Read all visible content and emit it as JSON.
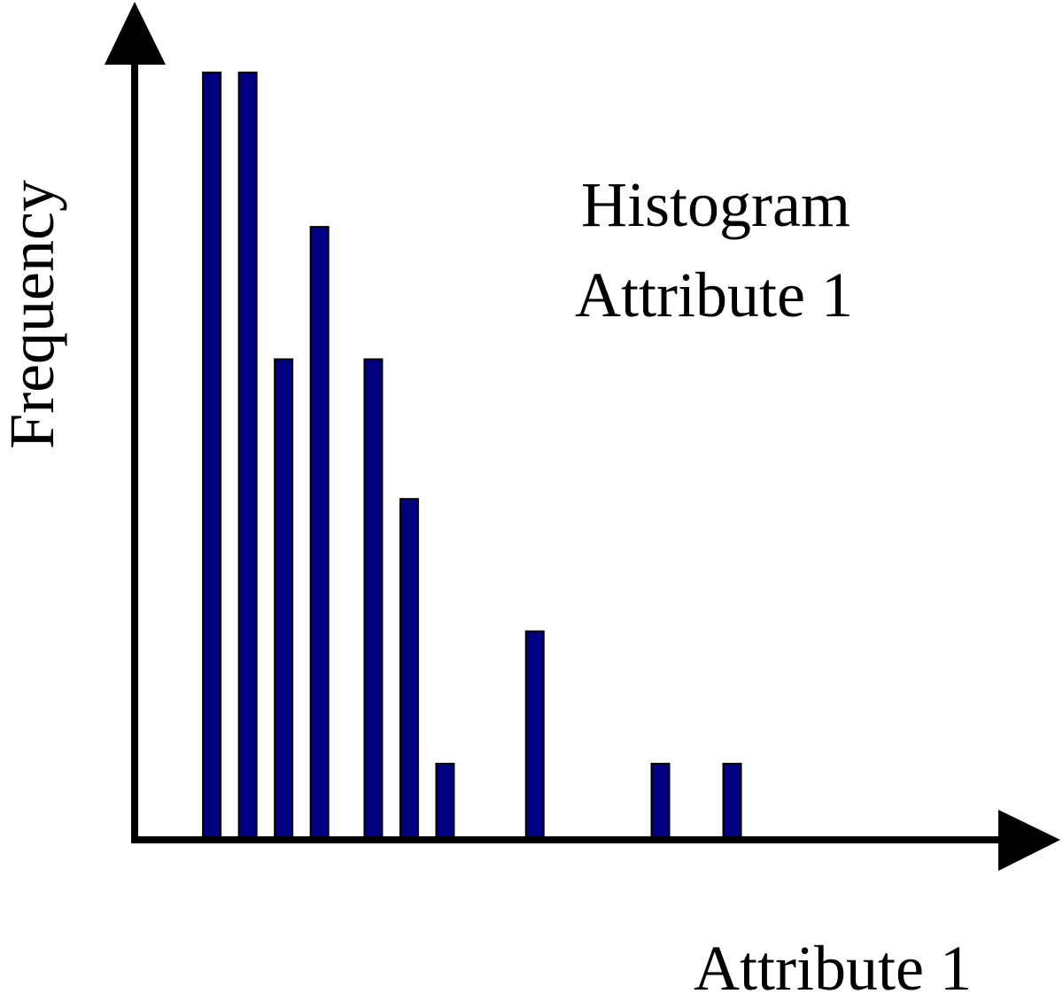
{
  "chart_data": {
    "type": "bar",
    "title": "Histogram",
    "subtitle": "Attribute 1",
    "x_label": "Attribute 1",
    "y_label": "Frequency",
    "x": [
      2.2,
      3.2,
      4.2,
      5.2,
      6.7,
      7.7,
      8.7,
      11.2,
      14.7,
      16.7
    ],
    "values": [
      10.4,
      10.4,
      6.5,
      8.3,
      6.5,
      4.6,
      1,
      2.8,
      1,
      1
    ],
    "color": "#000080",
    "xlim": [
      0,
      25.5
    ],
    "ylim": [
      0,
      11
    ]
  }
}
